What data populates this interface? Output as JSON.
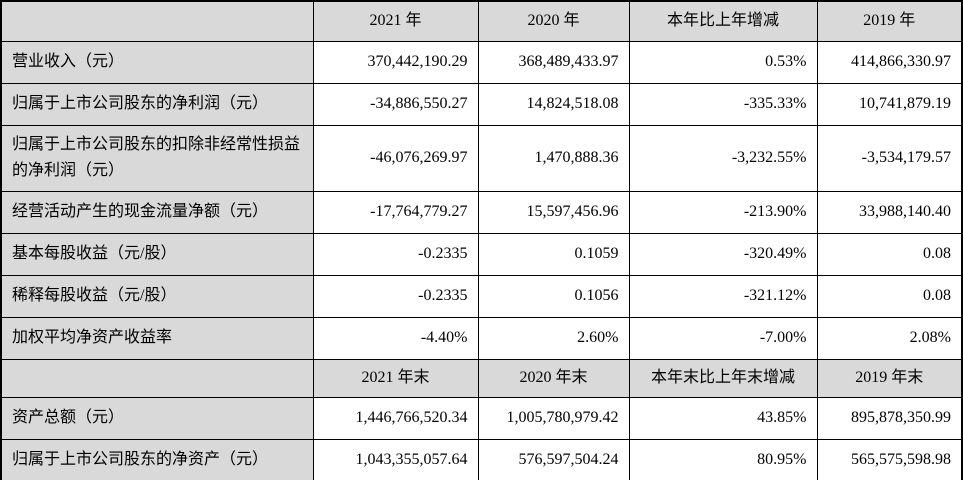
{
  "document": {
    "kind": "financial-summary-table",
    "colors": {
      "header_bg": "#d9d9d9",
      "label_bg": "#d9d9d9",
      "cell_bg": "#ffffff",
      "border": "#000000",
      "text": "#000000"
    }
  },
  "sections": [
    {
      "headers": [
        "",
        "2021 年",
        "2020 年",
        "本年比上年增减",
        "2019 年"
      ],
      "rows": [
        {
          "label": "营业收入（元）",
          "v": [
            "370,442,190.29",
            "368,489,433.97",
            "0.53%",
            "414,866,330.97"
          ]
        },
        {
          "label": "归属于上市公司股东的净利润（元）",
          "v": [
            "-34,886,550.27",
            "14,824,518.08",
            "-335.33%",
            "10,741,879.19"
          ]
        },
        {
          "label": "归属于上市公司股东的扣除非经常性损益的净利润（元）",
          "v": [
            "-46,076,269.97",
            "1,470,888.36",
            "-3,232.55%",
            "-3,534,179.57"
          ]
        },
        {
          "label": "经营活动产生的现金流量净额（元）",
          "v": [
            "-17,764,779.27",
            "15,597,456.96",
            "-213.90%",
            "33,988,140.40"
          ]
        },
        {
          "label": "基本每股收益（元/股）",
          "v": [
            "-0.2335",
            "0.1059",
            "-320.49%",
            "0.08"
          ]
        },
        {
          "label": "稀释每股收益（元/股）",
          "v": [
            "-0.2335",
            "0.1056",
            "-321.12%",
            "0.08"
          ]
        },
        {
          "label": "加权平均净资产收益率",
          "v": [
            "-4.40%",
            "2.60%",
            "-7.00%",
            "2.08%"
          ]
        }
      ]
    },
    {
      "headers": [
        "",
        "2021 年末",
        "2020 年末",
        "本年末比上年末增减",
        "2019 年末"
      ],
      "rows": [
        {
          "label": "资产总额（元）",
          "v": [
            "1,446,766,520.34",
            "1,005,780,979.42",
            "43.85%",
            "895,878,350.99"
          ]
        },
        {
          "label": "归属于上市公司股东的净资产（元）",
          "v": [
            "1,043,355,057.64",
            "576,597,504.24",
            "80.95%",
            "565,575,598.98"
          ]
        }
      ]
    }
  ]
}
